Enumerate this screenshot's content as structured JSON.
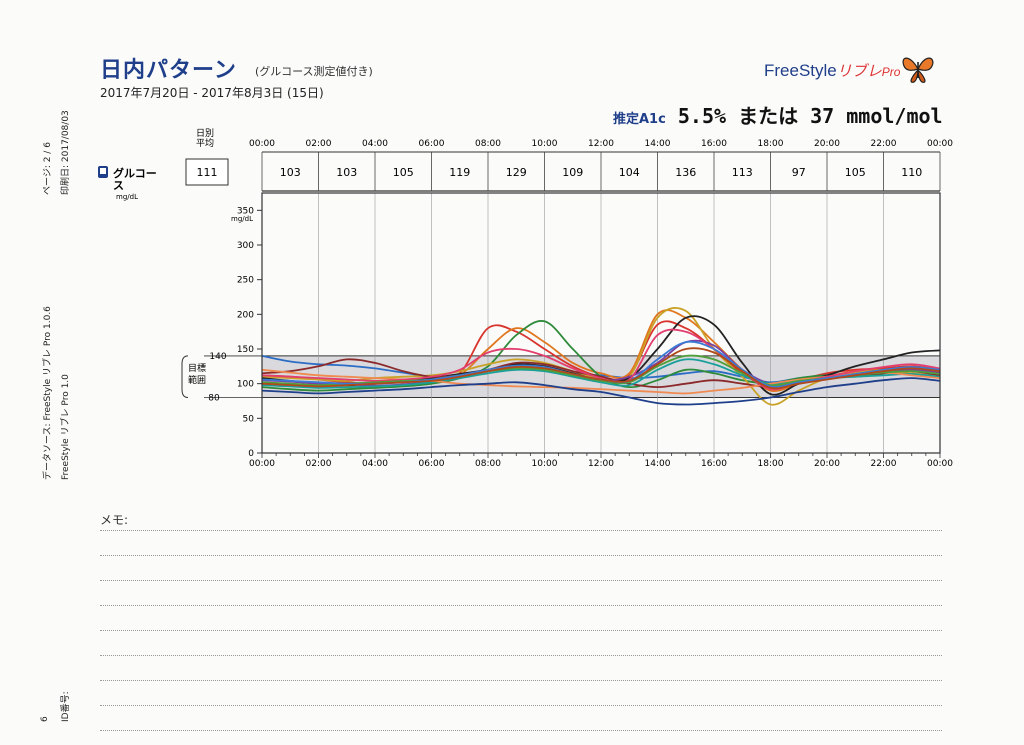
{
  "header": {
    "title": "日内パターン",
    "subtitle": "(グルコース測定値付き)",
    "date_range": "2017年7月20日 - 2017年8月3日 (15日)",
    "brand_name": "FreeStyle",
    "brand_ja": "リブレ",
    "brand_pro": "Pro",
    "a1c_label": "推定A1c",
    "a1c_value": "5.5% または 37 mmol/mol"
  },
  "side_text": {
    "page": "ページ: 2 / 6",
    "printed": "印刷日: 2017/08/03",
    "data_source_1": "データソース: FreeStyle リブレ Pro 1.0.6",
    "data_source_2": "FreeStyle リブレ Pro 1.0",
    "id_label": "ID番号:",
    "id_number": "6"
  },
  "row": {
    "daily_avg_label_1": "日別",
    "daily_avg_label_2": "平均",
    "glucose_label_1": "グルコー",
    "glucose_label_2": "ス",
    "glucose_unit": "mg/dL",
    "daily_avg_value": "111"
  },
  "memo": {
    "label": "メモ:"
  },
  "chart_data": {
    "type": "line",
    "x_ticks": [
      "00:00",
      "02:00",
      "04:00",
      "06:00",
      "08:00",
      "10:00",
      "12:00",
      "14:00",
      "16:00",
      "18:00",
      "20:00",
      "22:00",
      "00:00"
    ],
    "period_averages": [
      "103",
      "103",
      "105",
      "119",
      "129",
      "109",
      "104",
      "136",
      "113",
      "97",
      "105",
      "110"
    ],
    "ylabel": "mg/dL",
    "ylim": [
      0,
      375
    ],
    "y_ticks": [
      0,
      50,
      100,
      150,
      200,
      250,
      300,
      350
    ],
    "target_range": {
      "low": 80,
      "high": 140,
      "label_1": "目標",
      "label_2": "範囲",
      "low_label": "80",
      "high_label": "140"
    },
    "x_hours": [
      0,
      1,
      2,
      3,
      4,
      5,
      6,
      7,
      8,
      9,
      10,
      11,
      12,
      13,
      14,
      15,
      16,
      17,
      18,
      19,
      20,
      21,
      22,
      23,
      24
    ],
    "series": [
      {
        "color": "#2b6cc4",
        "values": [
          140,
          132,
          128,
          126,
          122,
          116,
          110,
          112,
          118,
          125,
          120,
          114,
          112,
          108,
          110,
          115,
          118,
          110,
          102,
          108,
          112,
          116,
          120,
          122,
          118
        ]
      },
      {
        "color": "#d9342b",
        "values": [
          112,
          110,
          106,
          102,
          100,
          104,
          108,
          115,
          180,
          175,
          150,
          125,
          110,
          112,
          185,
          180,
          150,
          115,
          95,
          105,
          115,
          120,
          122,
          125,
          120
        ]
      },
      {
        "color": "#e0771f",
        "values": [
          100,
          98,
          95,
          96,
          94,
          98,
          102,
          112,
          150,
          180,
          160,
          130,
          115,
          115,
          200,
          195,
          160,
          120,
          90,
          100,
          110,
          118,
          120,
          118,
          112
        ]
      },
      {
        "color": "#2e8b3a",
        "values": [
          95,
          92,
          90,
          92,
          94,
          96,
          100,
          108,
          125,
          170,
          190,
          150,
          110,
          95,
          105,
          120,
          115,
          105,
          100,
          108,
          112,
          110,
          115,
          120,
          118
        ]
      },
      {
        "color": "#c9a227",
        "values": [
          110,
          108,
          106,
          104,
          108,
          110,
          112,
          118,
          128,
          135,
          130,
          118,
          108,
          110,
          195,
          205,
          150,
          110,
          70,
          90,
          108,
          116,
          118,
          115,
          110
        ]
      },
      {
        "color": "#222222",
        "values": [
          108,
          104,
          100,
          98,
          100,
          104,
          108,
          114,
          120,
          128,
          125,
          115,
          105,
          108,
          150,
          195,
          185,
          130,
          85,
          100,
          112,
          125,
          135,
          145,
          148
        ]
      },
      {
        "color": "#8b2a2a",
        "values": [
          115,
          118,
          125,
          135,
          130,
          118,
          110,
          112,
          120,
          130,
          128,
          118,
          110,
          100,
          95,
          100,
          105,
          100,
          95,
          100,
          108,
          112,
          115,
          118,
          112
        ]
      },
      {
        "color": "#7a3fa0",
        "values": [
          105,
          103,
          100,
          99,
          97,
          99,
          104,
          110,
          118,
          125,
          122,
          112,
          104,
          110,
          130,
          160,
          155,
          120,
          100,
          104,
          110,
          114,
          118,
          120,
          116
        ]
      },
      {
        "color": "#1a9f9a",
        "values": [
          98,
          96,
          94,
          95,
          96,
          98,
          102,
          108,
          115,
          120,
          118,
          110,
          102,
          98,
          120,
          135,
          128,
          112,
          100,
          104,
          108,
          110,
          112,
          114,
          110
        ]
      },
      {
        "color": "#f08a50",
        "values": [
          120,
          116,
          112,
          110,
          108,
          106,
          104,
          100,
          98,
          96,
          95,
          94,
          92,
          90,
          88,
          86,
          90,
          94,
          100,
          106,
          110,
          114,
          116,
          112,
          108
        ]
      },
      {
        "color": "#1f3f8a",
        "values": [
          90,
          88,
          86,
          88,
          90,
          92,
          95,
          98,
          100,
          102,
          98,
          92,
          88,
          80,
          72,
          70,
          72,
          75,
          80,
          88,
          95,
          100,
          105,
          108,
          104
        ]
      },
      {
        "color": "#e23e6e",
        "values": [
          112,
          110,
          108,
          106,
          104,
          106,
          110,
          120,
          145,
          150,
          140,
          122,
          108,
          106,
          170,
          175,
          150,
          118,
          92,
          102,
          110,
          118,
          124,
          128,
          122
        ]
      },
      {
        "color": "#4f9f3a",
        "values": [
          102,
          100,
          98,
          100,
          102,
          104,
          106,
          112,
          118,
          122,
          120,
          112,
          104,
          102,
          125,
          140,
          135,
          115,
          98,
          104,
          108,
          112,
          116,
          118,
          114
        ]
      },
      {
        "color": "#3a7bd5",
        "values": [
          106,
          104,
          102,
          100,
          100,
          102,
          106,
          112,
          120,
          126,
          124,
          114,
          106,
          104,
          135,
          160,
          150,
          120,
          96,
          102,
          108,
          114,
          120,
          124,
          120
        ]
      },
      {
        "color": "#b04a1a",
        "values": [
          100,
          98,
          96,
          98,
          100,
          102,
          104,
          110,
          118,
          124,
          122,
          114,
          106,
          104,
          128,
          150,
          145,
          118,
          94,
          100,
          106,
          112,
          118,
          122,
          118
        ]
      }
    ]
  }
}
